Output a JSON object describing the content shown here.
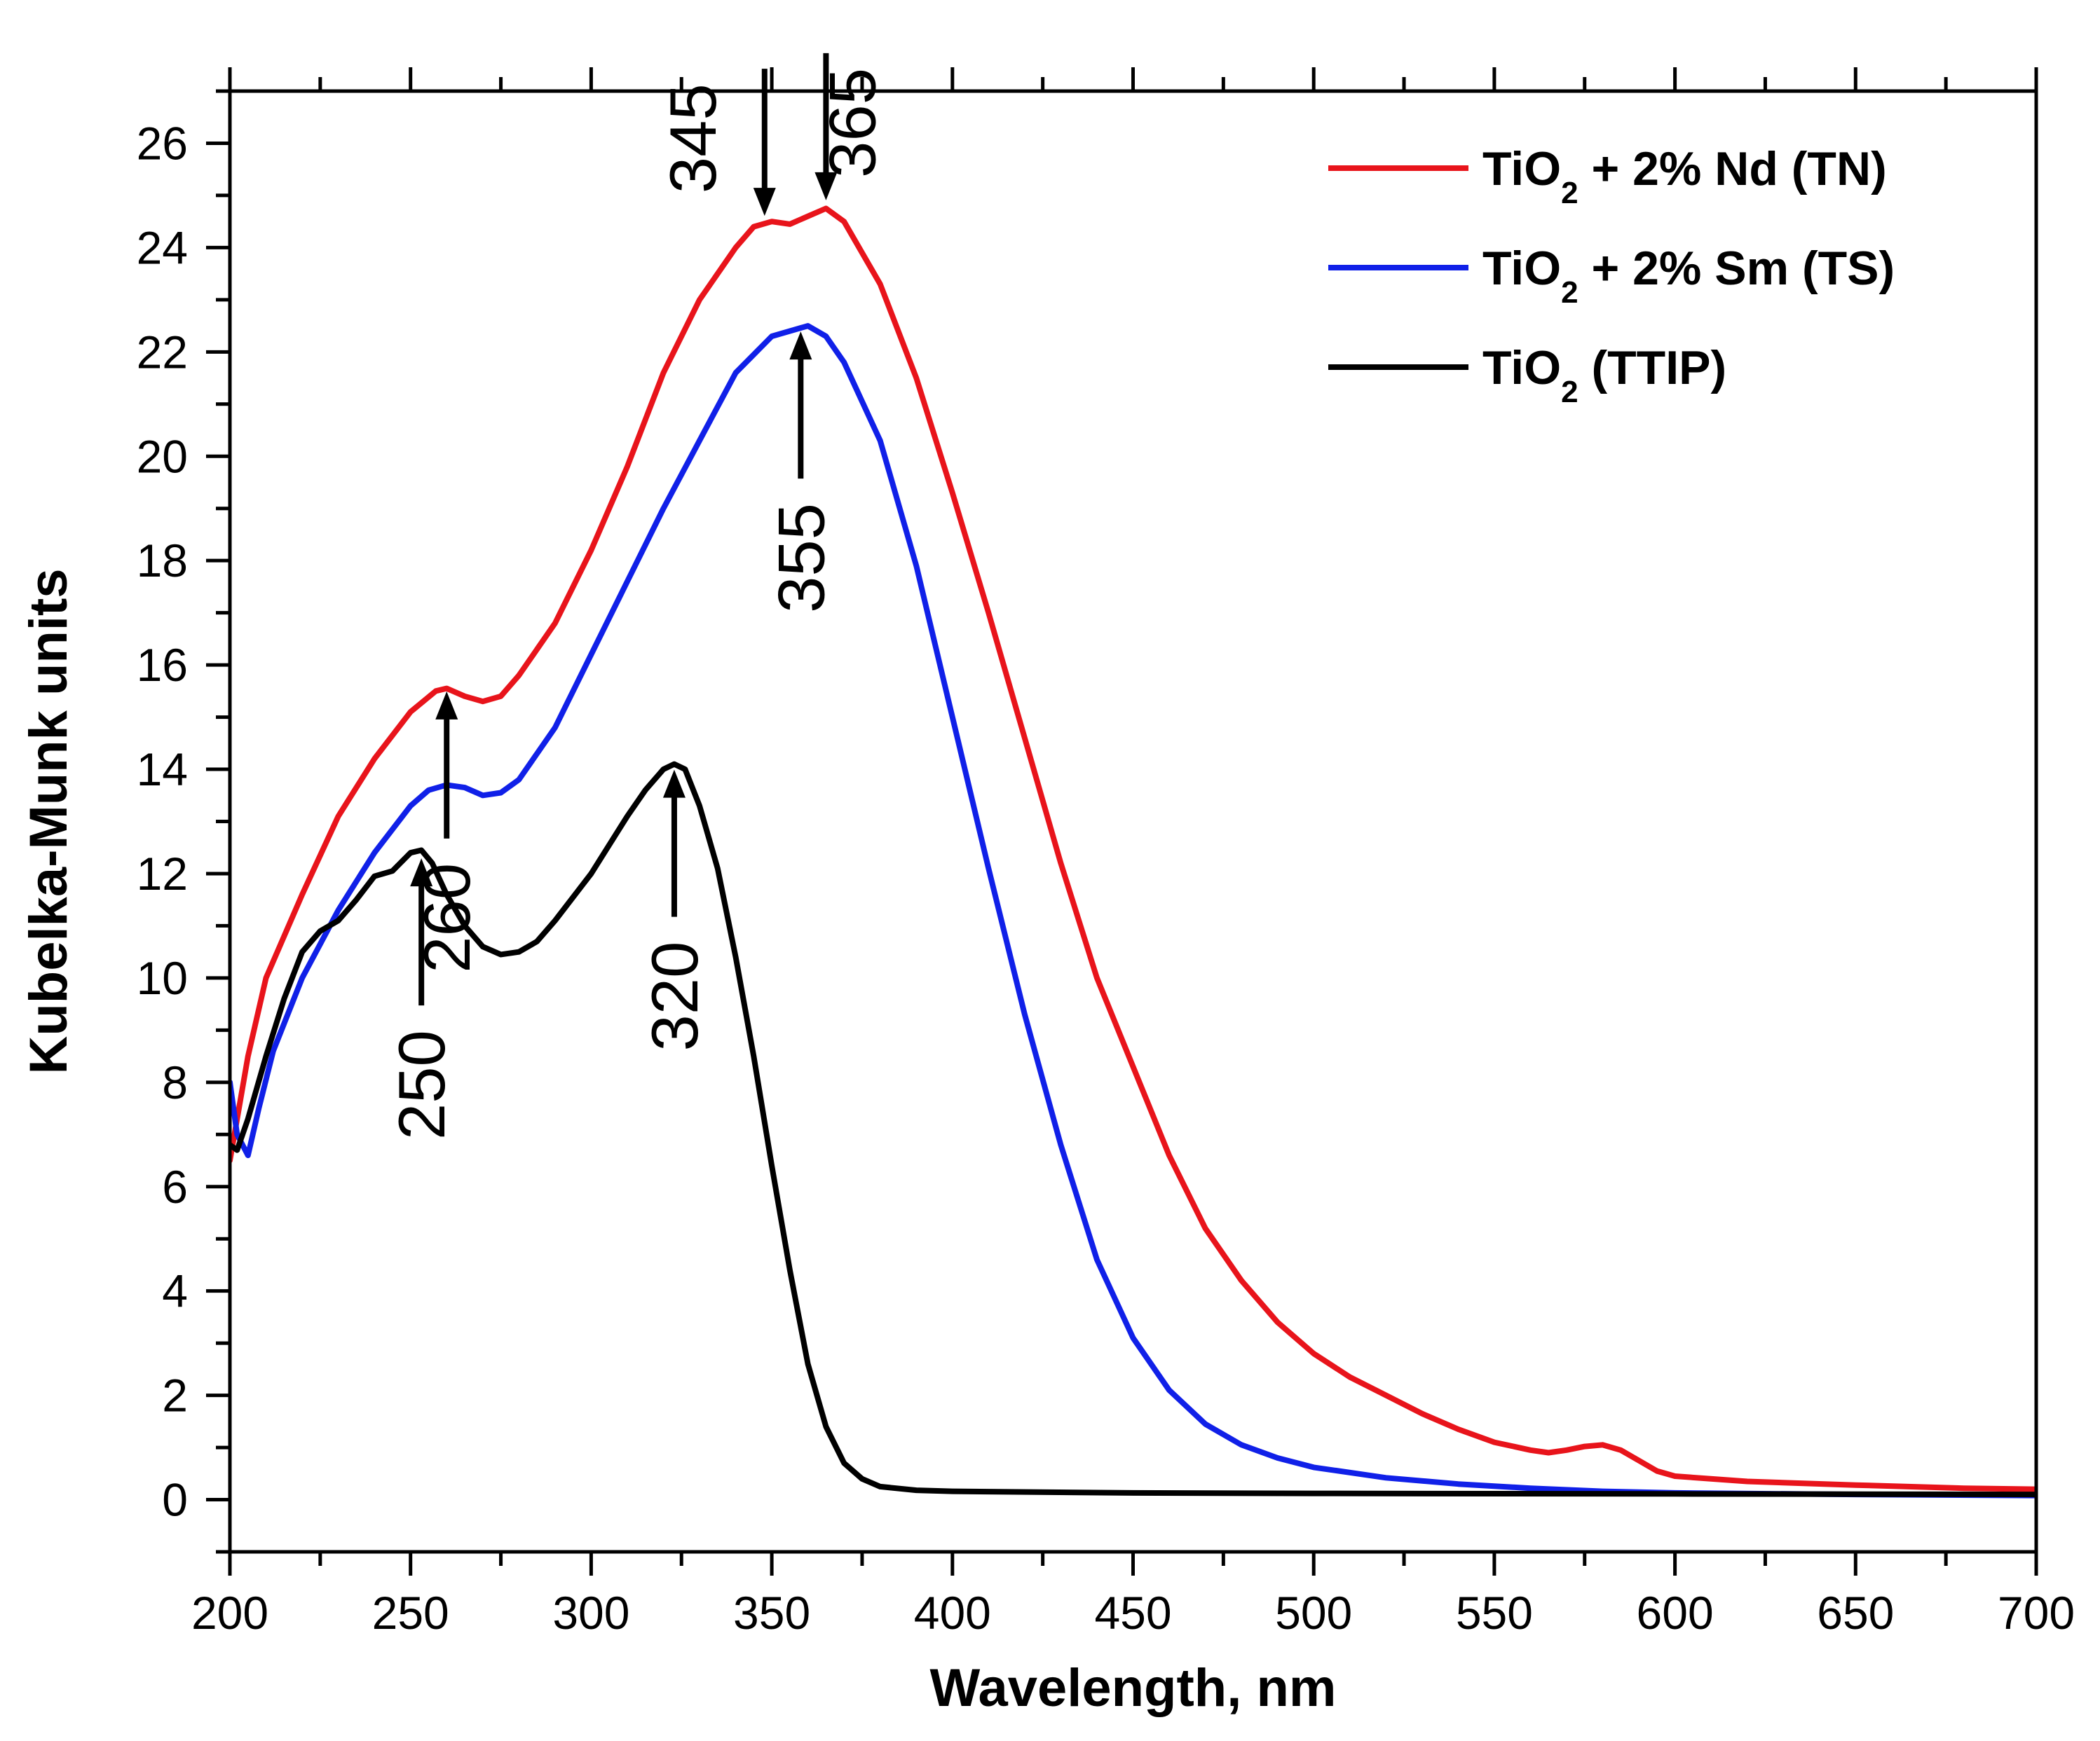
{
  "chart_data": {
    "type": "line",
    "title": "",
    "xlabel": "Wavelength, nm",
    "ylabel": "Kubelka-Munk units",
    "xlim": [
      200,
      700
    ],
    "ylim": [
      -1,
      27
    ],
    "xticks": [
      200,
      250,
      300,
      350,
      400,
      450,
      500,
      550,
      600,
      650,
      700
    ],
    "yticks": [
      0,
      2,
      4,
      6,
      8,
      10,
      12,
      14,
      16,
      18,
      20,
      22,
      24,
      26
    ],
    "grid": false,
    "legend_position": "top-right",
    "series": [
      {
        "name": "TiO2 + 2% Nd (TN)",
        "legend": {
          "pre": "TiO",
          "sub": "2",
          "post": " + 2% Nd (TN)"
        },
        "color": "#e8141b",
        "points": [
          [
            200,
            6.5
          ],
          [
            205,
            8.5
          ],
          [
            210,
            10.0
          ],
          [
            220,
            11.6
          ],
          [
            230,
            13.1
          ],
          [
            240,
            14.2
          ],
          [
            250,
            15.1
          ],
          [
            257,
            15.5
          ],
          [
            260,
            15.55
          ],
          [
            265,
            15.4
          ],
          [
            270,
            15.3
          ],
          [
            275,
            15.4
          ],
          [
            280,
            15.8
          ],
          [
            290,
            16.8
          ],
          [
            300,
            18.2
          ],
          [
            310,
            19.8
          ],
          [
            320,
            21.6
          ],
          [
            330,
            23.0
          ],
          [
            340,
            24.0
          ],
          [
            345,
            24.4
          ],
          [
            350,
            24.5
          ],
          [
            355,
            24.45
          ],
          [
            360,
            24.6
          ],
          [
            365,
            24.75
          ],
          [
            370,
            24.5
          ],
          [
            380,
            23.3
          ],
          [
            390,
            21.5
          ],
          [
            400,
            19.3
          ],
          [
            410,
            17.0
          ],
          [
            420,
            14.6
          ],
          [
            430,
            12.2
          ],
          [
            440,
            10.0
          ],
          [
            450,
            8.3
          ],
          [
            460,
            6.6
          ],
          [
            470,
            5.2
          ],
          [
            480,
            4.2
          ],
          [
            490,
            3.4
          ],
          [
            500,
            2.8
          ],
          [
            510,
            2.35
          ],
          [
            520,
            2.0
          ],
          [
            530,
            1.65
          ],
          [
            540,
            1.35
          ],
          [
            550,
            1.1
          ],
          [
            560,
            0.95
          ],
          [
            565,
            0.9
          ],
          [
            570,
            0.95
          ],
          [
            575,
            1.02
          ],
          [
            580,
            1.05
          ],
          [
            585,
            0.95
          ],
          [
            590,
            0.75
          ],
          [
            595,
            0.55
          ],
          [
            600,
            0.45
          ],
          [
            620,
            0.35
          ],
          [
            650,
            0.28
          ],
          [
            680,
            0.22
          ],
          [
            700,
            0.2
          ]
        ]
      },
      {
        "name": "TiO2 + 2% Sm (TS)",
        "legend": {
          "pre": "TiO",
          "sub": "2",
          "post": " + 2% Sm (TS)"
        },
        "color": "#1020e8",
        "points": [
          [
            200,
            8.0
          ],
          [
            202,
            7.0
          ],
          [
            205,
            6.6
          ],
          [
            208,
            7.5
          ],
          [
            212,
            8.6
          ],
          [
            220,
            10.0
          ],
          [
            230,
            11.3
          ],
          [
            240,
            12.4
          ],
          [
            250,
            13.3
          ],
          [
            255,
            13.6
          ],
          [
            260,
            13.7
          ],
          [
            265,
            13.65
          ],
          [
            270,
            13.5
          ],
          [
            275,
            13.55
          ],
          [
            280,
            13.8
          ],
          [
            290,
            14.8
          ],
          [
            300,
            16.2
          ],
          [
            310,
            17.6
          ],
          [
            320,
            19.0
          ],
          [
            330,
            20.3
          ],
          [
            340,
            21.6
          ],
          [
            350,
            22.3
          ],
          [
            360,
            22.5
          ],
          [
            365,
            22.3
          ],
          [
            370,
            21.8
          ],
          [
            380,
            20.3
          ],
          [
            390,
            17.9
          ],
          [
            400,
            15.0
          ],
          [
            410,
            12.1
          ],
          [
            420,
            9.3
          ],
          [
            430,
            6.8
          ],
          [
            440,
            4.6
          ],
          [
            450,
            3.1
          ],
          [
            460,
            2.1
          ],
          [
            470,
            1.45
          ],
          [
            480,
            1.05
          ],
          [
            490,
            0.8
          ],
          [
            500,
            0.62
          ],
          [
            520,
            0.42
          ],
          [
            540,
            0.3
          ],
          [
            560,
            0.22
          ],
          [
            580,
            0.16
          ],
          [
            600,
            0.13
          ],
          [
            650,
            0.1
          ],
          [
            700,
            0.08
          ]
        ]
      },
      {
        "name": "TiO2 (TTIP)",
        "legend": {
          "pre": "TiO",
          "sub": "2",
          "post": " (TTIP)"
        },
        "color": "#000000",
        "points": [
          [
            200,
            6.8
          ],
          [
            202,
            6.7
          ],
          [
            205,
            7.3
          ],
          [
            210,
            8.5
          ],
          [
            215,
            9.6
          ],
          [
            220,
            10.5
          ],
          [
            225,
            10.9
          ],
          [
            230,
            11.1
          ],
          [
            235,
            11.5
          ],
          [
            240,
            11.95
          ],
          [
            245,
            12.05
          ],
          [
            250,
            12.4
          ],
          [
            253,
            12.45
          ],
          [
            256,
            12.2
          ],
          [
            260,
            11.6
          ],
          [
            265,
            11.0
          ],
          [
            270,
            10.6
          ],
          [
            275,
            10.45
          ],
          [
            280,
            10.5
          ],
          [
            285,
            10.7
          ],
          [
            290,
            11.1
          ],
          [
            300,
            12.0
          ],
          [
            310,
            13.1
          ],
          [
            315,
            13.6
          ],
          [
            320,
            14.0
          ],
          [
            323,
            14.1
          ],
          [
            326,
            14.0
          ],
          [
            330,
            13.3
          ],
          [
            335,
            12.1
          ],
          [
            340,
            10.4
          ],
          [
            345,
            8.5
          ],
          [
            350,
            6.4
          ],
          [
            355,
            4.4
          ],
          [
            360,
            2.6
          ],
          [
            365,
            1.4
          ],
          [
            370,
            0.7
          ],
          [
            375,
            0.4
          ],
          [
            380,
            0.25
          ],
          [
            390,
            0.18
          ],
          [
            400,
            0.16
          ],
          [
            450,
            0.13
          ],
          [
            500,
            0.12
          ],
          [
            600,
            0.11
          ],
          [
            700,
            0.1
          ]
        ]
      }
    ],
    "annotations": [
      {
        "label": "345",
        "x": 348,
        "arrow_tip_y": 24.5,
        "direction": "down",
        "text_rotation": -90
      },
      {
        "label": "365",
        "x": 365,
        "arrow_tip_y": 24.8,
        "direction": "down",
        "text_rotation": -90
      },
      {
        "label": "260",
        "x": 260,
        "arrow_tip_y": 15.6,
        "direction": "up",
        "text_rotation": -90
      },
      {
        "label": "355",
        "x": 358,
        "arrow_tip_y": 22.5,
        "direction": "up",
        "text_rotation": -90
      },
      {
        "label": "250",
        "x": 253,
        "arrow_tip_y": 12.4,
        "direction": "up",
        "text_rotation": -90
      },
      {
        "label": "320",
        "x": 323,
        "arrow_tip_y": 14.1,
        "direction": "up",
        "text_rotation": -90
      }
    ]
  }
}
